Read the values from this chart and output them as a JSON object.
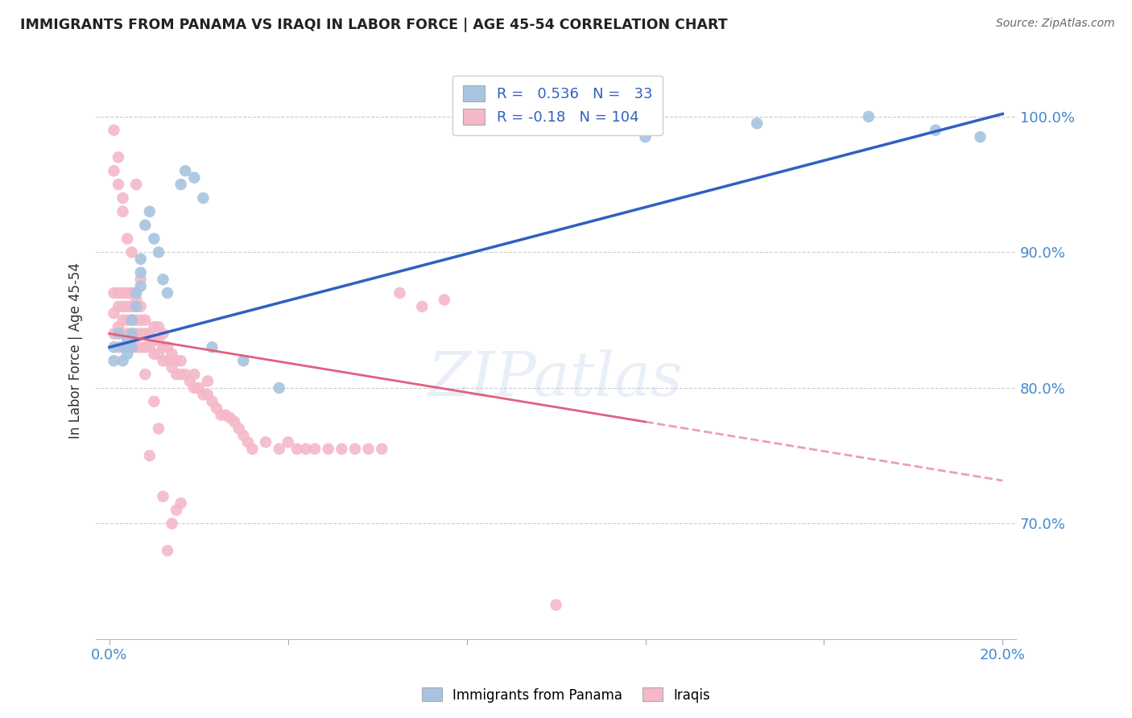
{
  "title": "IMMIGRANTS FROM PANAMA VS IRAQI IN LABOR FORCE | AGE 45-54 CORRELATION CHART",
  "source": "Source: ZipAtlas.com",
  "ylabel": "In Labor Force | Age 45-54",
  "xlim": [
    -0.003,
    0.203
  ],
  "ylim": [
    0.615,
    1.04
  ],
  "xticks": [
    0.0,
    0.04,
    0.08,
    0.12,
    0.16,
    0.2
  ],
  "xticklabels": [
    "0.0%",
    "",
    "",
    "",
    "",
    "20.0%"
  ],
  "yticks": [
    0.7,
    0.8,
    0.9,
    1.0
  ],
  "yticklabels": [
    "70.0%",
    "80.0%",
    "90.0%",
    "100.0%"
  ],
  "panama_color": "#a8c4e0",
  "iraqi_color": "#f4b8c8",
  "panama_line_color": "#3060c0",
  "iraqi_line_color": "#e06080",
  "panama_R": 0.536,
  "panama_N": 33,
  "iraqi_R": -0.18,
  "iraqi_N": 104,
  "watermark": "ZIPatlas",
  "panama_x": [
    0.001,
    0.001,
    0.002,
    0.003,
    0.003,
    0.004,
    0.004,
    0.005,
    0.005,
    0.005,
    0.006,
    0.006,
    0.007,
    0.007,
    0.007,
    0.008,
    0.009,
    0.01,
    0.011,
    0.012,
    0.013,
    0.016,
    0.017,
    0.019,
    0.021,
    0.023,
    0.03,
    0.038,
    0.12,
    0.145,
    0.17,
    0.185,
    0.195
  ],
  "panama_y": [
    0.83,
    0.82,
    0.84,
    0.83,
    0.82,
    0.835,
    0.825,
    0.85,
    0.84,
    0.83,
    0.87,
    0.86,
    0.895,
    0.885,
    0.875,
    0.92,
    0.93,
    0.91,
    0.9,
    0.88,
    0.87,
    0.95,
    0.96,
    0.955,
    0.94,
    0.83,
    0.82,
    0.8,
    0.985,
    0.995,
    1.0,
    0.99,
    0.985
  ],
  "iraqi_x": [
    0.001,
    0.001,
    0.001,
    0.002,
    0.002,
    0.002,
    0.002,
    0.003,
    0.003,
    0.003,
    0.003,
    0.004,
    0.004,
    0.004,
    0.004,
    0.004,
    0.005,
    0.005,
    0.005,
    0.005,
    0.005,
    0.006,
    0.006,
    0.006,
    0.006,
    0.007,
    0.007,
    0.007,
    0.007,
    0.008,
    0.008,
    0.008,
    0.009,
    0.009,
    0.01,
    0.01,
    0.01,
    0.011,
    0.011,
    0.011,
    0.012,
    0.012,
    0.012,
    0.013,
    0.013,
    0.014,
    0.014,
    0.015,
    0.015,
    0.016,
    0.016,
    0.017,
    0.018,
    0.019,
    0.019,
    0.02,
    0.021,
    0.022,
    0.022,
    0.023,
    0.024,
    0.025,
    0.026,
    0.027,
    0.028,
    0.029,
    0.03,
    0.031,
    0.032,
    0.035,
    0.038,
    0.04,
    0.042,
    0.044,
    0.046,
    0.049,
    0.052,
    0.055,
    0.058,
    0.061,
    0.001,
    0.001,
    0.002,
    0.002,
    0.003,
    0.003,
    0.004,
    0.005,
    0.006,
    0.006,
    0.007,
    0.008,
    0.009,
    0.01,
    0.011,
    0.012,
    0.013,
    0.014,
    0.015,
    0.016,
    0.065,
    0.07,
    0.075,
    0.1
  ],
  "iraqi_y": [
    0.84,
    0.855,
    0.87,
    0.83,
    0.845,
    0.86,
    0.87,
    0.84,
    0.85,
    0.86,
    0.87,
    0.83,
    0.84,
    0.85,
    0.86,
    0.87,
    0.83,
    0.84,
    0.85,
    0.86,
    0.87,
    0.83,
    0.84,
    0.85,
    0.86,
    0.83,
    0.84,
    0.85,
    0.86,
    0.83,
    0.84,
    0.85,
    0.83,
    0.84,
    0.825,
    0.835,
    0.845,
    0.825,
    0.835,
    0.845,
    0.82,
    0.83,
    0.84,
    0.82,
    0.83,
    0.815,
    0.825,
    0.81,
    0.82,
    0.81,
    0.82,
    0.81,
    0.805,
    0.8,
    0.81,
    0.8,
    0.795,
    0.795,
    0.805,
    0.79,
    0.785,
    0.78,
    0.78,
    0.778,
    0.775,
    0.77,
    0.765,
    0.76,
    0.755,
    0.76,
    0.755,
    0.76,
    0.755,
    0.755,
    0.755,
    0.755,
    0.755,
    0.755,
    0.755,
    0.755,
    0.96,
    0.99,
    0.97,
    0.95,
    0.94,
    0.93,
    0.91,
    0.9,
    0.95,
    0.865,
    0.88,
    0.81,
    0.75,
    0.79,
    0.77,
    0.72,
    0.68,
    0.7,
    0.71,
    0.715,
    0.87,
    0.86,
    0.865,
    0.64
  ],
  "background_color": "#ffffff",
  "grid_color": "#cccccc"
}
